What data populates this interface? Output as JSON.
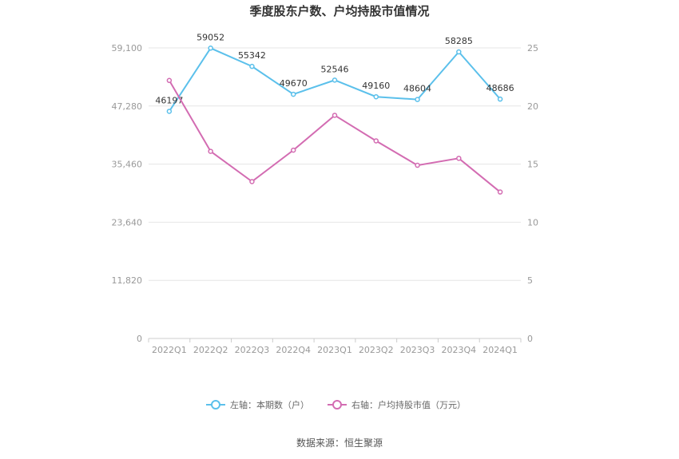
{
  "chart_data": {
    "type": "line",
    "title": "季度股东户数、户均持股市值情况",
    "categories": [
      "2022Q1",
      "2022Q2",
      "2022Q3",
      "2022Q4",
      "2023Q1",
      "2023Q2",
      "2023Q3",
      "2023Q4",
      "2024Q1"
    ],
    "y_left": {
      "ticks": [
        "0",
        "11,820",
        "23,640",
        "35,460",
        "47,280",
        "59,100"
      ],
      "ylim": [
        0,
        59100
      ]
    },
    "y_right": {
      "ticks": [
        "0",
        "5",
        "10",
        "15",
        "20",
        "25"
      ],
      "ylim": [
        0,
        25
      ]
    },
    "series": [
      {
        "name": "左轴：本期数（户）",
        "axis": "left",
        "color": "#5bc0eb",
        "values": [
          46197,
          59052,
          55342,
          49670,
          52546,
          49160,
          48604,
          58285,
          48686
        ],
        "labels": [
          "46197",
          "59052",
          "55342",
          "49670",
          "52546",
          "49160",
          "48604",
          "58285",
          "48686"
        ]
      },
      {
        "name": "右轴：户均持股市值（万元）",
        "axis": "right",
        "color": "#d36cb2",
        "values": [
          22.2,
          16.1,
          13.5,
          16.2,
          19.2,
          17.0,
          14.9,
          15.5,
          12.6
        ]
      }
    ],
    "grid": true,
    "legend": "bottom-center"
  },
  "source": "数据来源：恒生聚源"
}
